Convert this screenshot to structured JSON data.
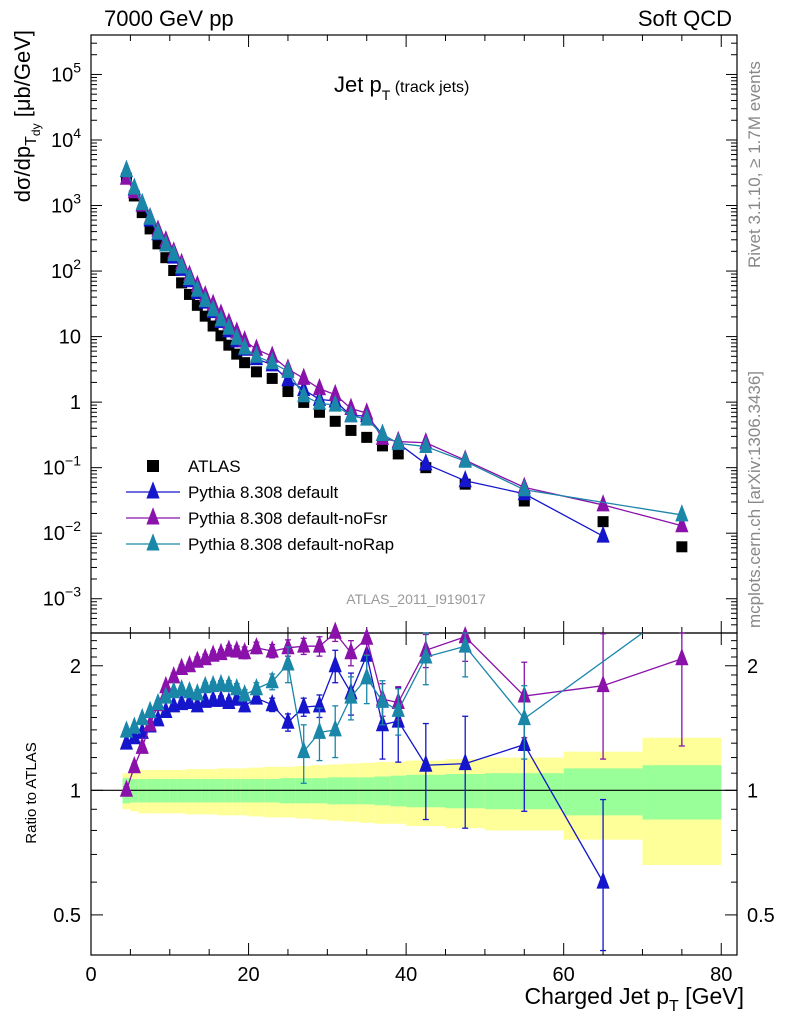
{
  "header": {
    "left": "7000 GeV pp",
    "right": "Soft QCD"
  },
  "side": {
    "rivet": "Rivet 3.1.10, ≥ 1.7M events",
    "mcplots": "mcplots.cern.ch [arXiv:1306.3436]"
  },
  "chart_data": [
    {
      "type": "scatter",
      "title": "Jet pT (track jets)",
      "title_main": "Jet p",
      "title_sub": "T",
      "title_extra": "(track jets)",
      "watermark": "ATLAS_2011_I919017",
      "ylabel": "dσ/dpTdy [μb/GeV]",
      "ylabel_parts": {
        "a": "dσ/dp",
        "sub": "T",
        "subsub": "dy",
        "b": " [μb/GeV]"
      },
      "yscale": "log",
      "ylim": [
        0.0003,
        400000
      ],
      "xlim": [
        0,
        82
      ],
      "yticks": [
        {
          "v": 0.001,
          "base": "10",
          "exp": "−3"
        },
        {
          "v": 0.01,
          "base": "10",
          "exp": "−2"
        },
        {
          "v": 0.1,
          "base": "10",
          "exp": "−1"
        },
        {
          "v": 1,
          "base": "1",
          "exp": ""
        },
        {
          "v": 10,
          "base": "10",
          "exp": ""
        },
        {
          "v": 100,
          "base": "10",
          "exp": "2"
        },
        {
          "v": 1000,
          "base": "10",
          "exp": "3"
        },
        {
          "v": 10000,
          "base": "10",
          "exp": "4"
        },
        {
          "v": 100000,
          "base": "10",
          "exp": "5"
        }
      ],
      "legend_position": "middle-left",
      "x": [
        4.5,
        5.5,
        6.5,
        7.5,
        8.5,
        9.5,
        10.5,
        11.5,
        12.5,
        13.5,
        14.5,
        15.5,
        16.5,
        17.5,
        18.5,
        19.5,
        21,
        23,
        25,
        27,
        29,
        31,
        33,
        35,
        37,
        39,
        42.5,
        47.5,
        55,
        65,
        75
      ],
      "series": [
        {
          "name": "ATLAS",
          "color": "#000000",
          "marker": "square",
          "values": [
            2600,
            1400,
            780,
            440,
            260,
            160,
            102,
            66,
            44,
            30,
            20.5,
            14.5,
            10.3,
            7.4,
            5.4,
            4.0,
            2.9,
            2.3,
            1.45,
            0.99,
            0.7,
            0.51,
            0.37,
            0.29,
            0.215,
            0.162,
            0.1,
            0.056,
            0.031,
            0.015,
            0.0062
          ]
        },
        {
          "name": "Pythia 8.308 default",
          "color": "#1515cc",
          "marker": "triangle",
          "values": [
            3400,
            1780,
            1010,
            600,
            370,
            250,
            163,
            106,
            71,
            47,
            33.5,
            24,
            17,
            12.2,
            8.6,
            6.4,
            4.6,
            3.7,
            2.2,
            1.55,
            1.1,
            1.04,
            0.62,
            0.62,
            0.32,
            0.235,
            0.114,
            0.063,
            0.04,
            0.009,
            null
          ]
        },
        {
          "name": "Pythia 8.308 default-noFsr",
          "color": "#8a12aa",
          "marker": "triangle",
          "values": [
            2600,
            1620,
            1020,
            650,
            420,
            290,
            195,
            130,
            86,
            60,
            42,
            31,
            22,
            16,
            11.7,
            8.6,
            6.4,
            5.0,
            3.2,
            2.3,
            1.6,
            1.3,
            0.8,
            0.68,
            0.28,
            0.25,
            0.24,
            0.13,
            0.05,
            0.027,
            0.013
          ]
        },
        {
          "name": "Pythia 8.308 default-noRap",
          "color": "#1a86a8",
          "marker": "triangle",
          "values": [
            3400,
            1840,
            1070,
            640,
            380,
            250,
            178,
            115,
            77,
            51,
            35.5,
            25.5,
            18,
            13.4,
            9.4,
            6.7,
            5.0,
            4.0,
            2.95,
            1.25,
            0.96,
            0.9,
            0.62,
            0.55,
            0.32,
            0.235,
            0.21,
            0.125,
            0.046,
            null,
            0.019
          ]
        }
      ]
    },
    {
      "type": "scatter",
      "title": "",
      "ylabel": "Ratio to ATLAS",
      "xlabel": "Charged Jet pT [GeV]",
      "xlabel_parts": {
        "a": "Charged Jet p",
        "sub": "T",
        "b": " [GeV]"
      },
      "xlim": [
        0,
        82
      ],
      "ylim": [
        0.4,
        2.4
      ],
      "yscale": "log",
      "xticks": [
        0,
        20,
        40,
        60,
        80
      ],
      "yticks": [
        0.5,
        1,
        2
      ],
      "band_colors": {
        "inner": "#99ff99",
        "outer": "#ffff99"
      },
      "band_edges": [
        4,
        5,
        6,
        7,
        8,
        9,
        10,
        11,
        12,
        13,
        14,
        15,
        16,
        17,
        18,
        19,
        20,
        22,
        24,
        26,
        28,
        30,
        32,
        34,
        36,
        38,
        40,
        45,
        50,
        60,
        70,
        80
      ],
      "band_inner": [
        0.07,
        0.065,
        0.065,
        0.065,
        0.065,
        0.065,
        0.065,
        0.065,
        0.065,
        0.065,
        0.065,
        0.065,
        0.065,
        0.065,
        0.065,
        0.065,
        0.065,
        0.065,
        0.07,
        0.07,
        0.07,
        0.075,
        0.075,
        0.075,
        0.08,
        0.085,
        0.09,
        0.095,
        0.1,
        0.13,
        0.15
      ],
      "band_outer": [
        0.1,
        0.11,
        0.12,
        0.12,
        0.12,
        0.12,
        0.12,
        0.12,
        0.125,
        0.125,
        0.125,
        0.125,
        0.13,
        0.13,
        0.13,
        0.13,
        0.135,
        0.14,
        0.14,
        0.145,
        0.15,
        0.155,
        0.16,
        0.165,
        0.17,
        0.17,
        0.18,
        0.19,
        0.2,
        0.24,
        0.34
      ],
      "x": [
        4.5,
        5.5,
        6.5,
        7.5,
        8.5,
        9.5,
        10.5,
        11.5,
        12.5,
        13.5,
        14.5,
        15.5,
        16.5,
        17.5,
        18.5,
        19.5,
        21,
        23,
        25,
        27,
        29,
        31,
        33,
        35,
        37,
        39,
        42.5,
        47.5,
        55,
        65,
        75
      ],
      "series": [
        {
          "name": "Pythia 8.308 default",
          "color": "#1515cc",
          "values": [
            1.3,
            1.34,
            1.38,
            1.43,
            1.48,
            1.55,
            1.6,
            1.62,
            1.63,
            1.6,
            1.64,
            1.65,
            1.65,
            1.63,
            1.66,
            1.6,
            1.67,
            1.61,
            1.46,
            1.59,
            1.6,
            2.0,
            1.72,
            2.12,
            1.44,
            1.47,
            1.15,
            1.16,
            1.29,
            0.6,
            null
          ],
          "err": [
            0.02,
            0.02,
            0.02,
            0.02,
            0.02,
            0.02,
            0.02,
            0.03,
            0.03,
            0.03,
            0.03,
            0.04,
            0.04,
            0.04,
            0.05,
            0.05,
            0.05,
            0.06,
            0.07,
            0.08,
            0.1,
            0.18,
            0.2,
            0.3,
            0.25,
            0.3,
            0.3,
            0.35,
            0.4,
            0.35,
            null
          ]
        },
        {
          "name": "Pythia 8.308 default-noFsr",
          "color": "#8a12aa",
          "values": [
            1.0,
            1.14,
            1.27,
            1.44,
            1.61,
            1.78,
            1.88,
            1.97,
            2.0,
            2.05,
            2.08,
            2.12,
            2.14,
            2.18,
            2.17,
            2.15,
            2.21,
            2.17,
            2.21,
            2.23,
            2.23,
            2.41,
            2.15,
            2.33,
            1.66,
            1.63,
            2.18,
            2.35,
            1.69,
            1.79,
            2.08
          ],
          "err": [
            0.02,
            0.02,
            0.02,
            0.03,
            0.03,
            0.03,
            0.04,
            0.04,
            0.04,
            0.05,
            0.05,
            0.05,
            0.05,
            0.06,
            0.06,
            0.07,
            0.07,
            0.08,
            0.1,
            0.1,
            0.12,
            0.12,
            0.15,
            0.2,
            0.15,
            0.15,
            0.2,
            0.3,
            0.35,
            0.6,
            0.8
          ]
        },
        {
          "name": "Pythia 8.308 default-noRap",
          "color": "#1a86a8",
          "values": [
            1.39,
            1.42,
            1.49,
            1.55,
            1.62,
            1.68,
            1.73,
            1.75,
            1.73,
            1.71,
            1.78,
            1.79,
            1.8,
            1.79,
            1.76,
            1.7,
            1.76,
            1.83,
            2.02,
            1.24,
            1.38,
            1.4,
            1.68,
            1.87,
            1.64,
            1.56,
            2.1,
            2.23,
            1.49,
            null,
            null
          ],
          "err": [
            0.02,
            0.02,
            0.02,
            0.02,
            0.03,
            0.03,
            0.03,
            0.03,
            0.03,
            0.04,
            0.04,
            0.04,
            0.04,
            0.05,
            0.05,
            0.05,
            0.06,
            0.08,
            0.2,
            0.2,
            0.2,
            0.2,
            0.2,
            0.25,
            0.2,
            0.2,
            0.3,
            0.35,
            0.3,
            null,
            null
          ]
        }
      ]
    }
  ]
}
